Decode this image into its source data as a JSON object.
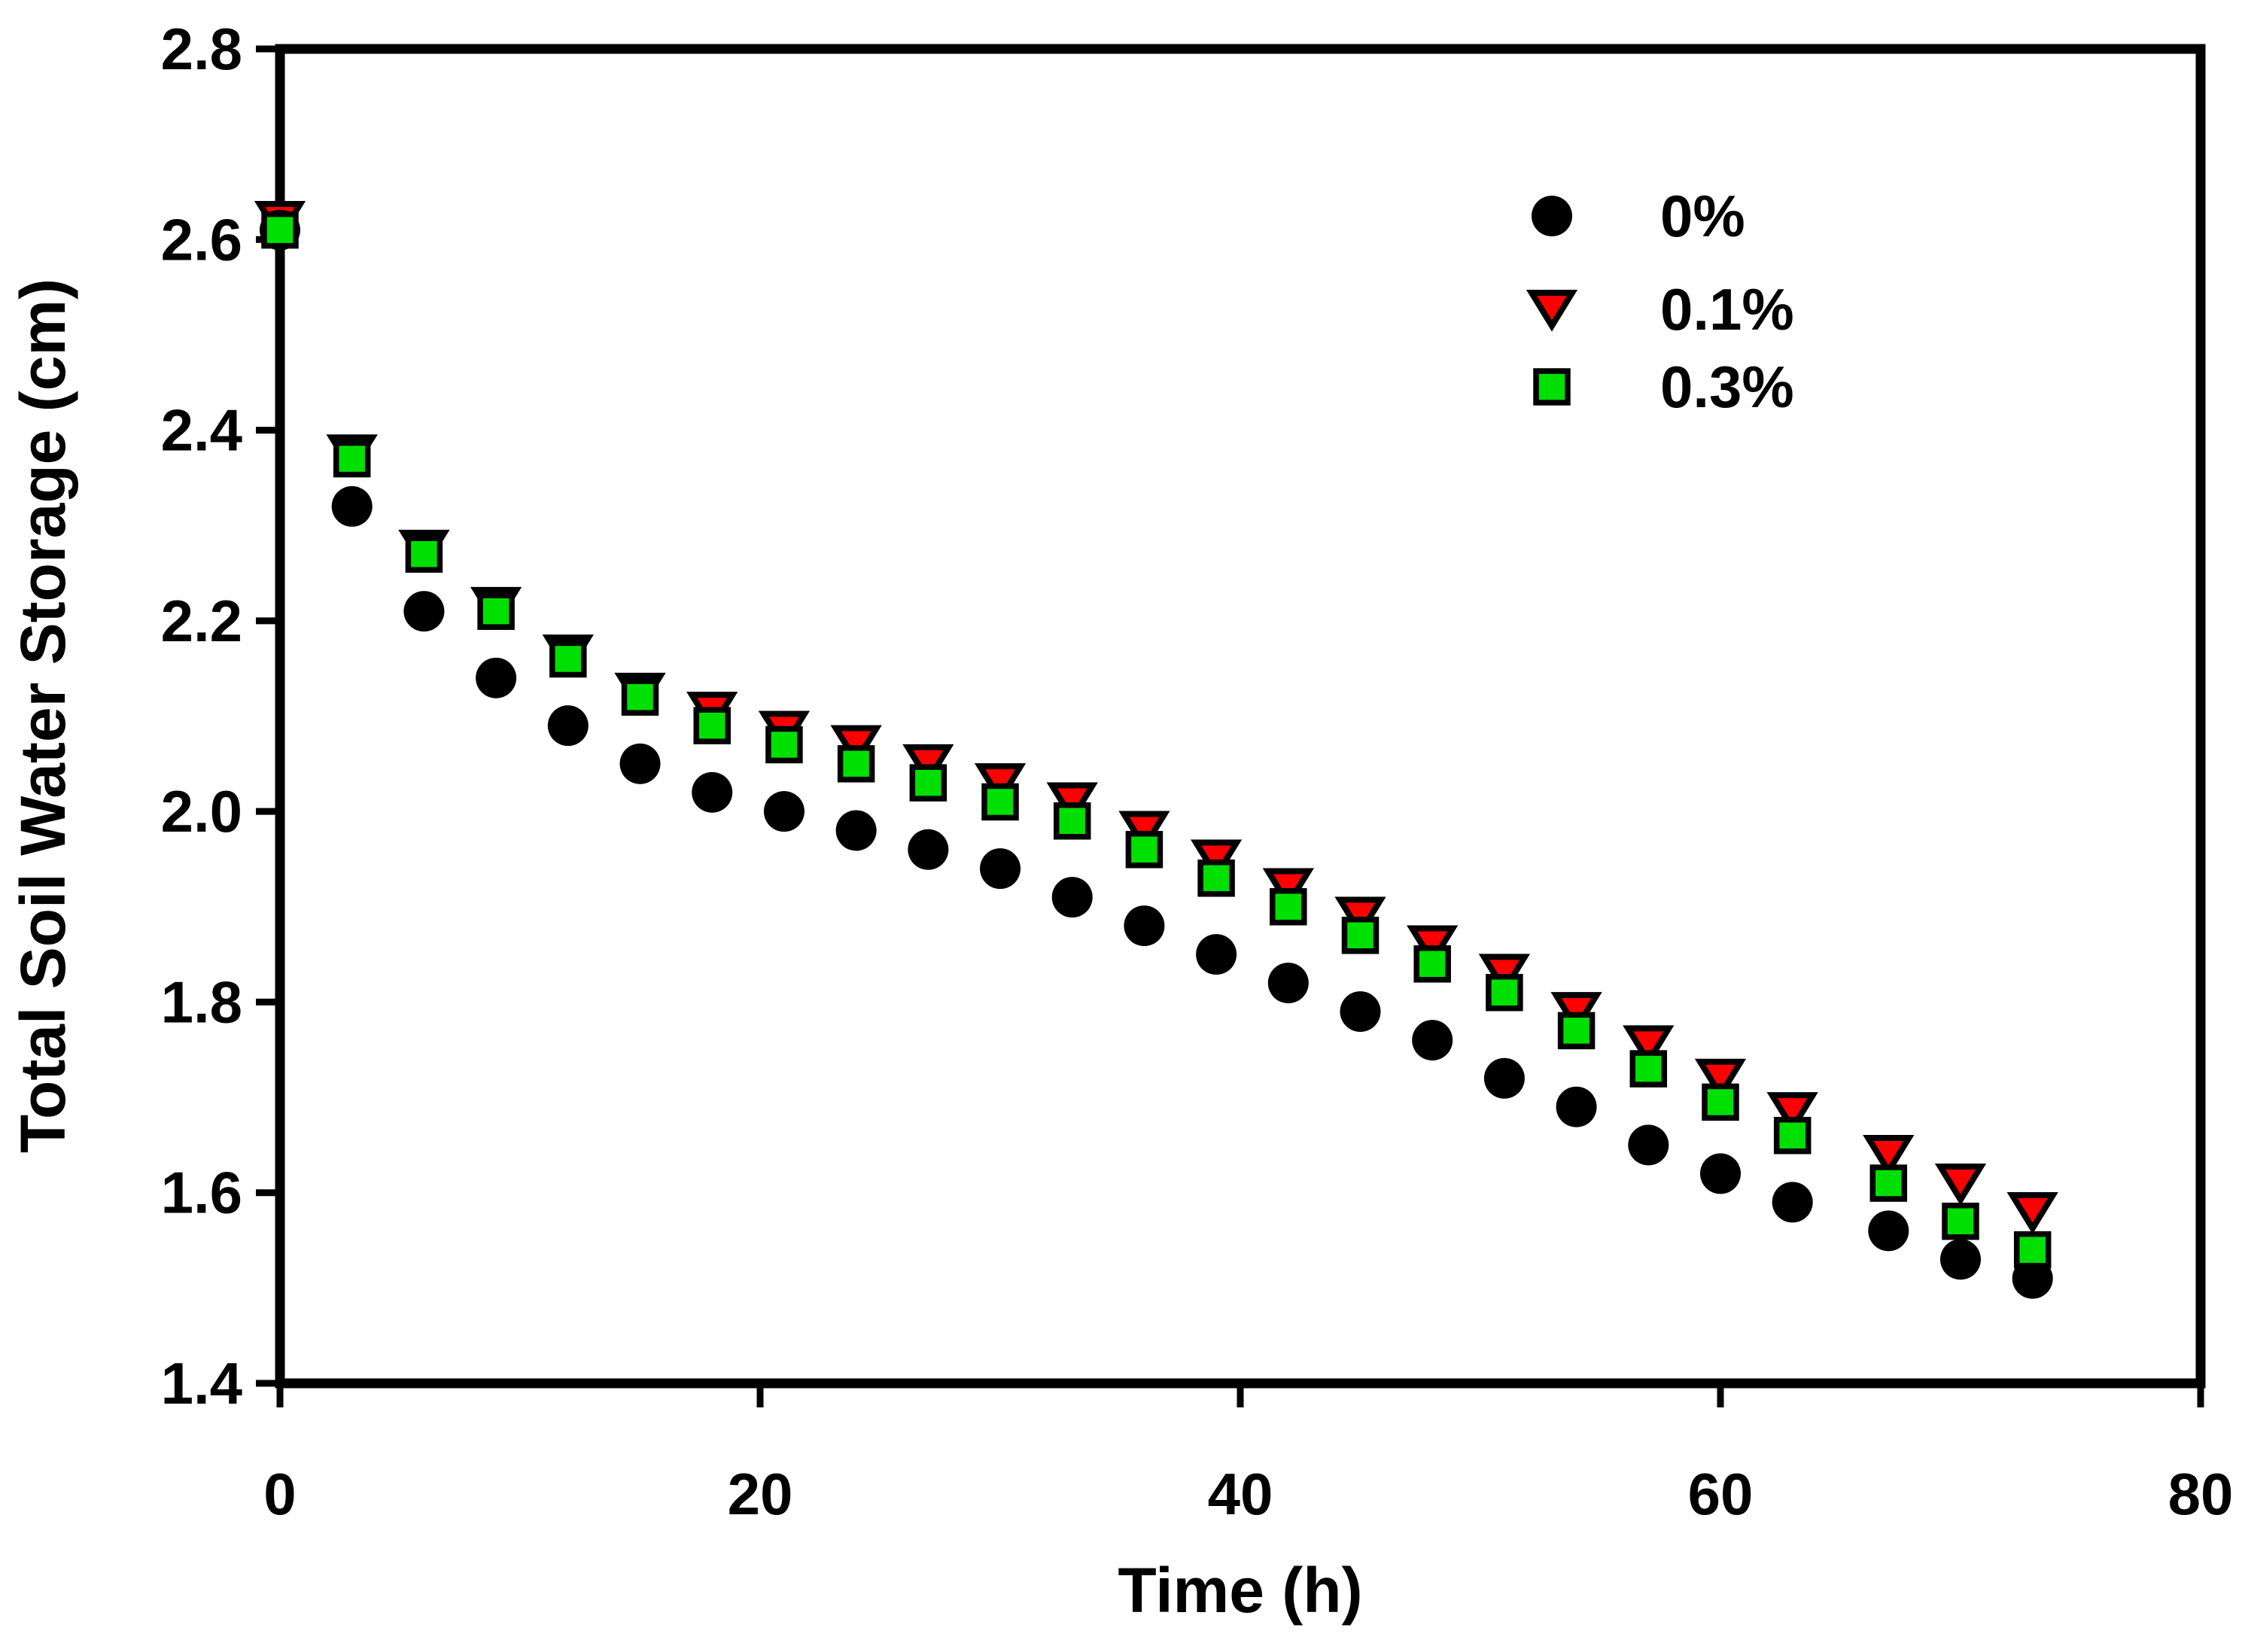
{
  "figure": {
    "background": "#ffffff",
    "frame_color": "#000000"
  },
  "axes": {
    "x_label": "Time (h)",
    "y_label": "Total Soil Water Storage (cm)",
    "x_tick_labels": [
      "0",
      "20",
      "40",
      "60",
      "80"
    ],
    "x_tick_values": [
      0,
      20,
      40,
      60,
      80
    ],
    "y_tick_labels": [
      "1.4",
      "1.6",
      "1.8",
      "2.0",
      "2.2",
      "2.4",
      "2.6",
      "2.8"
    ],
    "y_tick_values": [
      1.4,
      1.6,
      1.8,
      2.0,
      2.2,
      2.4,
      2.6,
      2.8
    ],
    "x_range": [
      0,
      80
    ],
    "y_range": [
      1.4,
      2.8
    ]
  },
  "legend": {
    "items": [
      {
        "label": "0%",
        "marker": "circle",
        "color": "#000000"
      },
      {
        "label": "0.1%",
        "marker": "triangle-down",
        "color": "#ff0000"
      },
      {
        "label": "0.3%",
        "marker": "square",
        "color": "#00e000"
      }
    ]
  },
  "chart_data": {
    "type": "scatter",
    "title": "",
    "xlabel": "Time (h)",
    "ylabel": "Total Soil Water Storage (cm)",
    "xlim": [
      0,
      80
    ],
    "ylim": [
      1.4,
      2.8
    ],
    "grid": false,
    "legend_position": "upper right",
    "x": [
      0,
      3,
      6,
      9,
      12,
      15,
      18,
      21,
      24,
      27,
      30,
      33,
      36,
      39,
      42,
      45,
      48,
      51,
      54,
      57,
      60,
      63,
      67,
      70,
      73
    ],
    "series": [
      {
        "name": "0%",
        "marker": "circle",
        "color": "#000000",
        "values": [
          2.61,
          2.32,
          2.21,
          2.14,
          2.09,
          2.05,
          2.02,
          2.0,
          1.98,
          1.96,
          1.94,
          1.91,
          1.88,
          1.85,
          1.82,
          1.79,
          1.76,
          1.72,
          1.69,
          1.65,
          1.62,
          1.59,
          1.56,
          1.53,
          1.51
        ]
      },
      {
        "name": "0.1%",
        "marker": "triangle-down",
        "color": "#ff0000",
        "values": [
          2.62,
          2.375,
          2.275,
          2.215,
          2.165,
          2.125,
          2.105,
          2.085,
          2.07,
          2.05,
          2.03,
          2.01,
          1.98,
          1.95,
          1.92,
          1.89,
          1.86,
          1.83,
          1.79,
          1.755,
          1.72,
          1.685,
          1.64,
          1.61,
          1.58
        ]
      },
      {
        "name": "0.3%",
        "marker": "square",
        "color": "#00e000",
        "values": [
          2.61,
          2.37,
          2.27,
          2.21,
          2.16,
          2.12,
          2.09,
          2.07,
          2.05,
          2.03,
          2.01,
          1.99,
          1.96,
          1.93,
          1.9,
          1.87,
          1.84,
          1.81,
          1.77,
          1.73,
          1.695,
          1.66,
          1.61,
          1.57,
          1.54
        ]
      }
    ]
  }
}
